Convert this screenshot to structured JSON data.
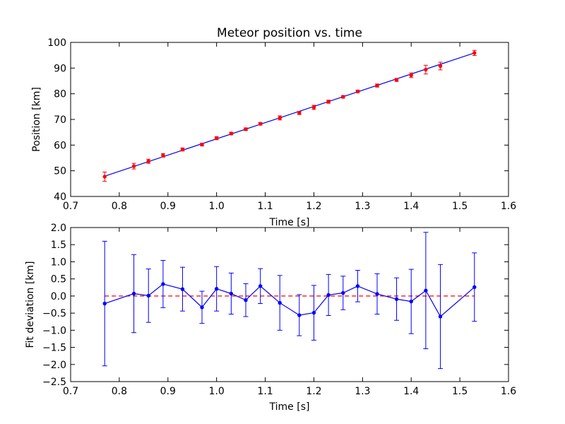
{
  "chart_data": [
    {
      "type": "scatter",
      "title": "Meteor position vs. time",
      "xlabel": "Time [s]",
      "ylabel": "Position [km]",
      "xlim": [
        0.7,
        1.6
      ],
      "ylim": [
        40,
        100
      ],
      "xticks": [
        "0.7",
        "0.8",
        "0.9",
        "1.0",
        "1.1",
        "1.2",
        "1.3",
        "1.4",
        "1.5",
        "1.6"
      ],
      "yticks": [
        "40",
        "50",
        "60",
        "70",
        "80",
        "90",
        "100"
      ],
      "grid": false,
      "colors": {
        "points": "#ff0000",
        "errorbars": "#ff0000",
        "fit": "#0000ff"
      },
      "fit_line": {
        "x": [
          0.77,
          1.53
        ],
        "y": [
          47.9,
          95.9
        ]
      },
      "series": [
        {
          "x": [
            0.77,
            0.83,
            0.86,
            0.89,
            0.93,
            0.97,
            1.0,
            1.03,
            1.06,
            1.09,
            1.13,
            1.17,
            1.2,
            1.23,
            1.26,
            1.29,
            1.33,
            1.37,
            1.4,
            1.43,
            1.46,
            1.53
          ],
          "y": [
            47.7,
            51.8,
            53.7,
            56.0,
            58.3,
            60.2,
            62.7,
            64.5,
            66.2,
            68.3,
            70.6,
            72.5,
            74.7,
            76.9,
            78.8,
            80.9,
            83.2,
            85.4,
            87.2,
            89.4,
            90.8,
            95.9
          ],
          "err": [
            1.8,
            1.1,
            0.8,
            0.7,
            0.6,
            0.5,
            0.6,
            0.5,
            0.5,
            0.5,
            0.8,
            0.6,
            0.8,
            0.6,
            0.5,
            0.5,
            0.6,
            0.6,
            0.9,
            1.7,
            1.5,
            1.0
          ]
        }
      ]
    },
    {
      "type": "line",
      "title": "",
      "xlabel": "Time [s]",
      "ylabel": "Fit deviation [km]",
      "xlim": [
        0.7,
        1.6
      ],
      "ylim": [
        -2.5,
        2.0
      ],
      "xticks": [
        "0.7",
        "0.8",
        "0.9",
        "1.0",
        "1.1",
        "1.2",
        "1.3",
        "1.4",
        "1.5",
        "1.6"
      ],
      "yticks": [
        "−2.5",
        "−2.0",
        "−1.5",
        "−1.0",
        "−0.5",
        "0.0",
        "0.5",
        "1.0",
        "1.5",
        "2.0"
      ],
      "grid": false,
      "colors": {
        "line": "#0000ff",
        "errorbars": "#0000ff",
        "reference": "#ff0000"
      },
      "reference_line": {
        "y": 0.0,
        "style": "dashed"
      },
      "series": [
        {
          "x": [
            0.77,
            0.83,
            0.86,
            0.89,
            0.93,
            0.97,
            1.0,
            1.03,
            1.06,
            1.09,
            1.13,
            1.17,
            1.2,
            1.23,
            1.26,
            1.29,
            1.33,
            1.37,
            1.4,
            1.43,
            1.46,
            1.53
          ],
          "y": [
            -0.22,
            0.07,
            0.01,
            0.35,
            0.2,
            -0.33,
            0.21,
            0.07,
            -0.12,
            0.29,
            -0.2,
            -0.56,
            -0.49,
            0.03,
            0.09,
            0.29,
            0.06,
            -0.09,
            -0.16,
            0.16,
            -0.6,
            0.26
          ],
          "err": [
            1.82,
            1.14,
            0.78,
            0.69,
            0.64,
            0.47,
            0.65,
            0.6,
            0.48,
            0.51,
            0.8,
            0.6,
            0.8,
            0.6,
            0.49,
            0.46,
            0.59,
            0.62,
            0.94,
            1.7,
            1.52,
            1.0
          ]
        }
      ]
    }
  ]
}
